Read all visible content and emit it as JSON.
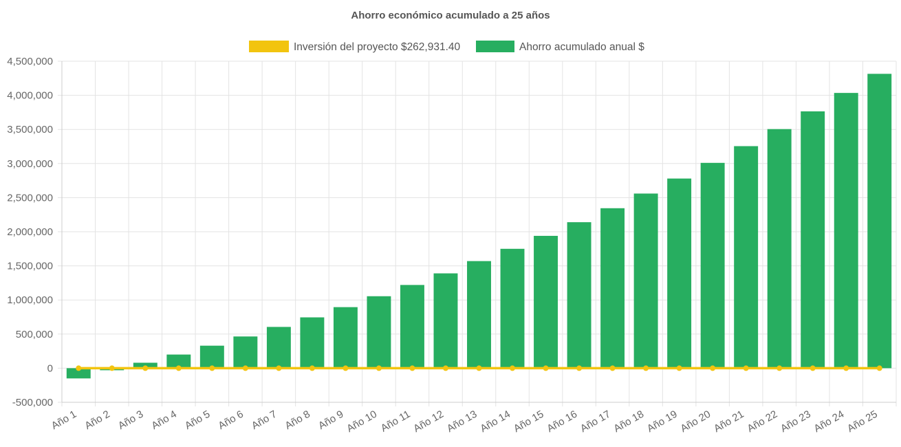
{
  "chart_data": {
    "type": "bar",
    "title": "Ahorro económico acumulado a 25 años",
    "xlabel": "",
    "ylabel": "",
    "categories": [
      "Año 1",
      "Año 2",
      "Año 3",
      "Año 4",
      "Año 5",
      "Año 6",
      "Año 7",
      "Año 8",
      "Año 9",
      "Año 10",
      "Año 11",
      "Año 12",
      "Año 13",
      "Año 14",
      "Año 15",
      "Año 16",
      "Año 17",
      "Año 18",
      "Año 19",
      "Año 20",
      "Año 21",
      "Año 22",
      "Año 23",
      "Año 24",
      "Año 25"
    ],
    "ylim": [
      -500000,
      4500000
    ],
    "yticks": [
      4500000,
      4000000,
      3500000,
      3000000,
      2500000,
      2000000,
      1500000,
      1000000,
      500000,
      0,
      -500000
    ],
    "ytick_labels": [
      "4,500,000",
      "4,000,000",
      "3,500,000",
      "3,000,000",
      "2,500,000",
      "2,000,000",
      "1,500,000",
      "1,000,000",
      "500,000",
      "0",
      "-500,000"
    ],
    "grid": true,
    "legend_position": "top-center",
    "series": [
      {
        "name": "Inversión del proyecto $262,931.40",
        "kind": "line",
        "color": "#f2c40f",
        "values": [
          0,
          0,
          0,
          0,
          0,
          0,
          0,
          0,
          0,
          0,
          0,
          0,
          0,
          0,
          0,
          0,
          0,
          0,
          0,
          0,
          0,
          0,
          0,
          0,
          0
        ]
      },
      {
        "name": "Ahorro acumulado anual $",
        "kind": "bar",
        "color": "#27ae60",
        "values": [
          -150000,
          -30000,
          80000,
          200000,
          330000,
          465000,
          605000,
          745000,
          895000,
          1055000,
          1220000,
          1390000,
          1570000,
          1750000,
          1940000,
          2140000,
          2345000,
          2560000,
          2780000,
          3010000,
          3255000,
          3505000,
          3765000,
          4035000,
          4315000
        ]
      }
    ]
  }
}
